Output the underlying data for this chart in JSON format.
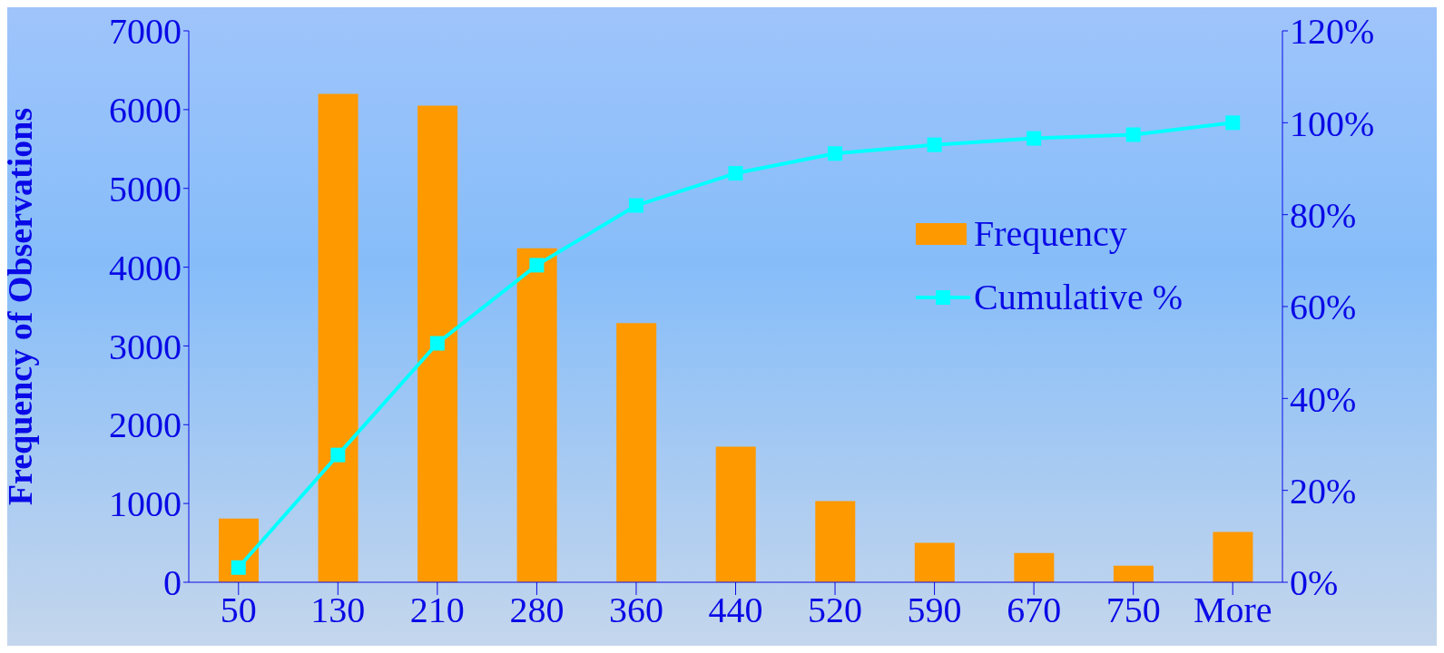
{
  "chart_data": {
    "type": "bar",
    "ylabel": "Frequency of Observations",
    "categories": [
      "50",
      "130",
      "210",
      "280",
      "360",
      "440",
      "520",
      "590",
      "670",
      "750",
      "More"
    ],
    "series": [
      {
        "name": "Frequency",
        "color": "#ff9900",
        "values": [
          810,
          6200,
          6050,
          4240,
          3290,
          1720,
          1030,
          500,
          370,
          210,
          640
        ]
      },
      {
        "name": "Cumulative %",
        "type": "line",
        "axis": "y2",
        "color": "#00ffff",
        "marker": "square",
        "values": [
          3.2,
          27.7,
          52,
          69,
          82,
          89,
          93.3,
          95.2,
          96.6,
          97.4,
          100
        ]
      }
    ],
    "ylim": [
      0,
      7000
    ],
    "yticks": [
      0,
      1000,
      2000,
      3000,
      4000,
      5000,
      6000,
      7000
    ],
    "y2lim": [
      0,
      120
    ],
    "y2ticks": [
      {
        "value": 0,
        "label": "0%"
      },
      {
        "value": 20,
        "label": "20%"
      },
      {
        "value": 40,
        "label": "40%"
      },
      {
        "value": 60,
        "label": "60%"
      },
      {
        "value": 80,
        "label": "80%"
      },
      {
        "value": 100,
        "label": "100%"
      },
      {
        "value": 120,
        "label": "120%"
      }
    ],
    "grid": false,
    "legend": "right"
  }
}
